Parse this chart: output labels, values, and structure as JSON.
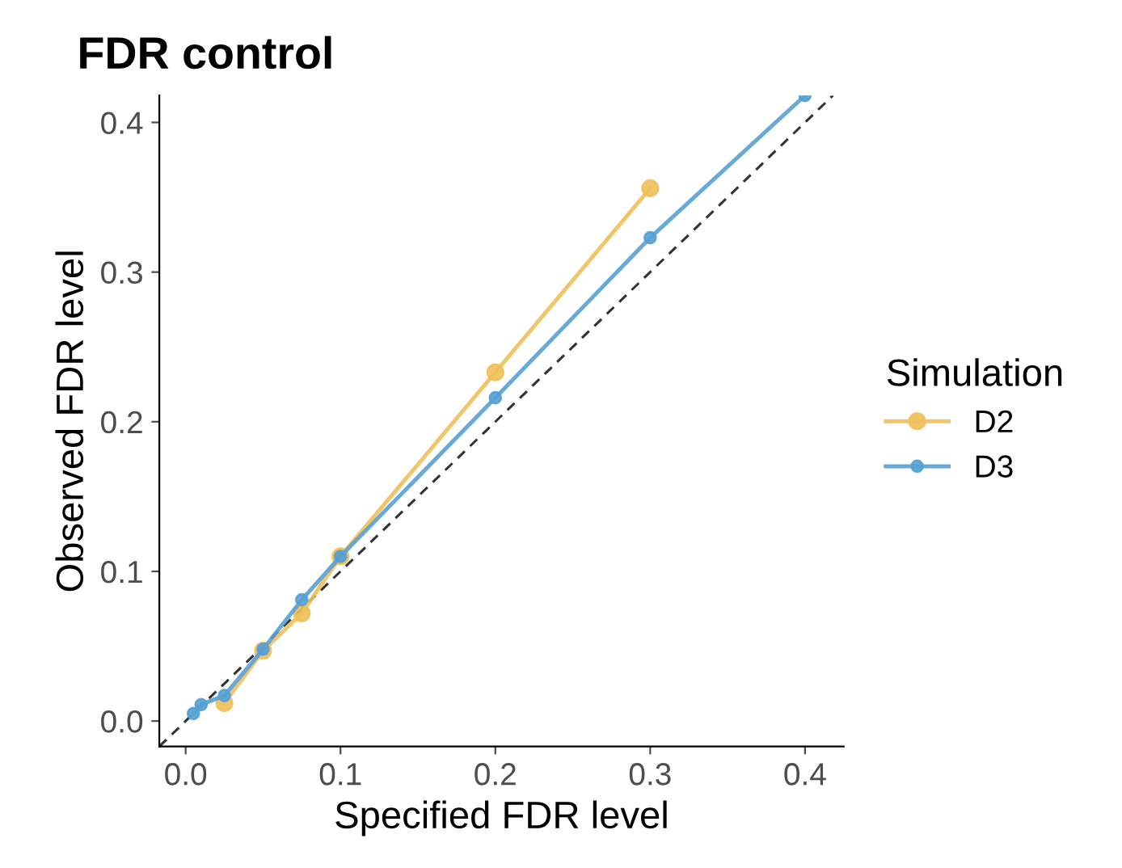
{
  "chart_data": {
    "type": "line",
    "title": "FDR control",
    "xlabel": "Specified FDR level",
    "ylabel": "Observed FDR level",
    "legend_title": "Simulation",
    "legend": "right",
    "marker": "circle",
    "grid": false,
    "xlim": [
      -0.017,
      0.425
    ],
    "ylim": [
      -0.017,
      0.418
    ],
    "xticks": [
      {
        "value": 0,
        "label": "0.0"
      },
      0.1,
      0.2,
      0.3,
      0.4
    ],
    "yticks": [
      {
        "value": 0,
        "label": "0.0"
      },
      0.1,
      0.2,
      0.3,
      0.4
    ],
    "series": [
      {
        "type": "line",
        "color": "#333333",
        "line_style": "dashed",
        "marker": "none",
        "x": [
          -0.017,
          0.418
        ],
        "values": [
          -0.017,
          0.418
        ]
      },
      {
        "name": "D2",
        "color": "#f0c05a",
        "x": [
          0.025,
          0.05,
          0.075,
          0.1,
          0.2,
          0.3
        ],
        "values": [
          0.012,
          0.047,
          0.072,
          0.11,
          0.233,
          0.356
        ]
      },
      {
        "name": "D3",
        "color": "#56a0d3",
        "x": [
          0.005,
          0.01,
          0.025,
          0.05,
          0.075,
          0.1,
          0.2,
          0.3,
          0.4
        ],
        "values": [
          0.005,
          0.011,
          0.017,
          0.048,
          0.081,
          0.11,
          0.216,
          0.323,
          0.418
        ]
      }
    ]
  }
}
